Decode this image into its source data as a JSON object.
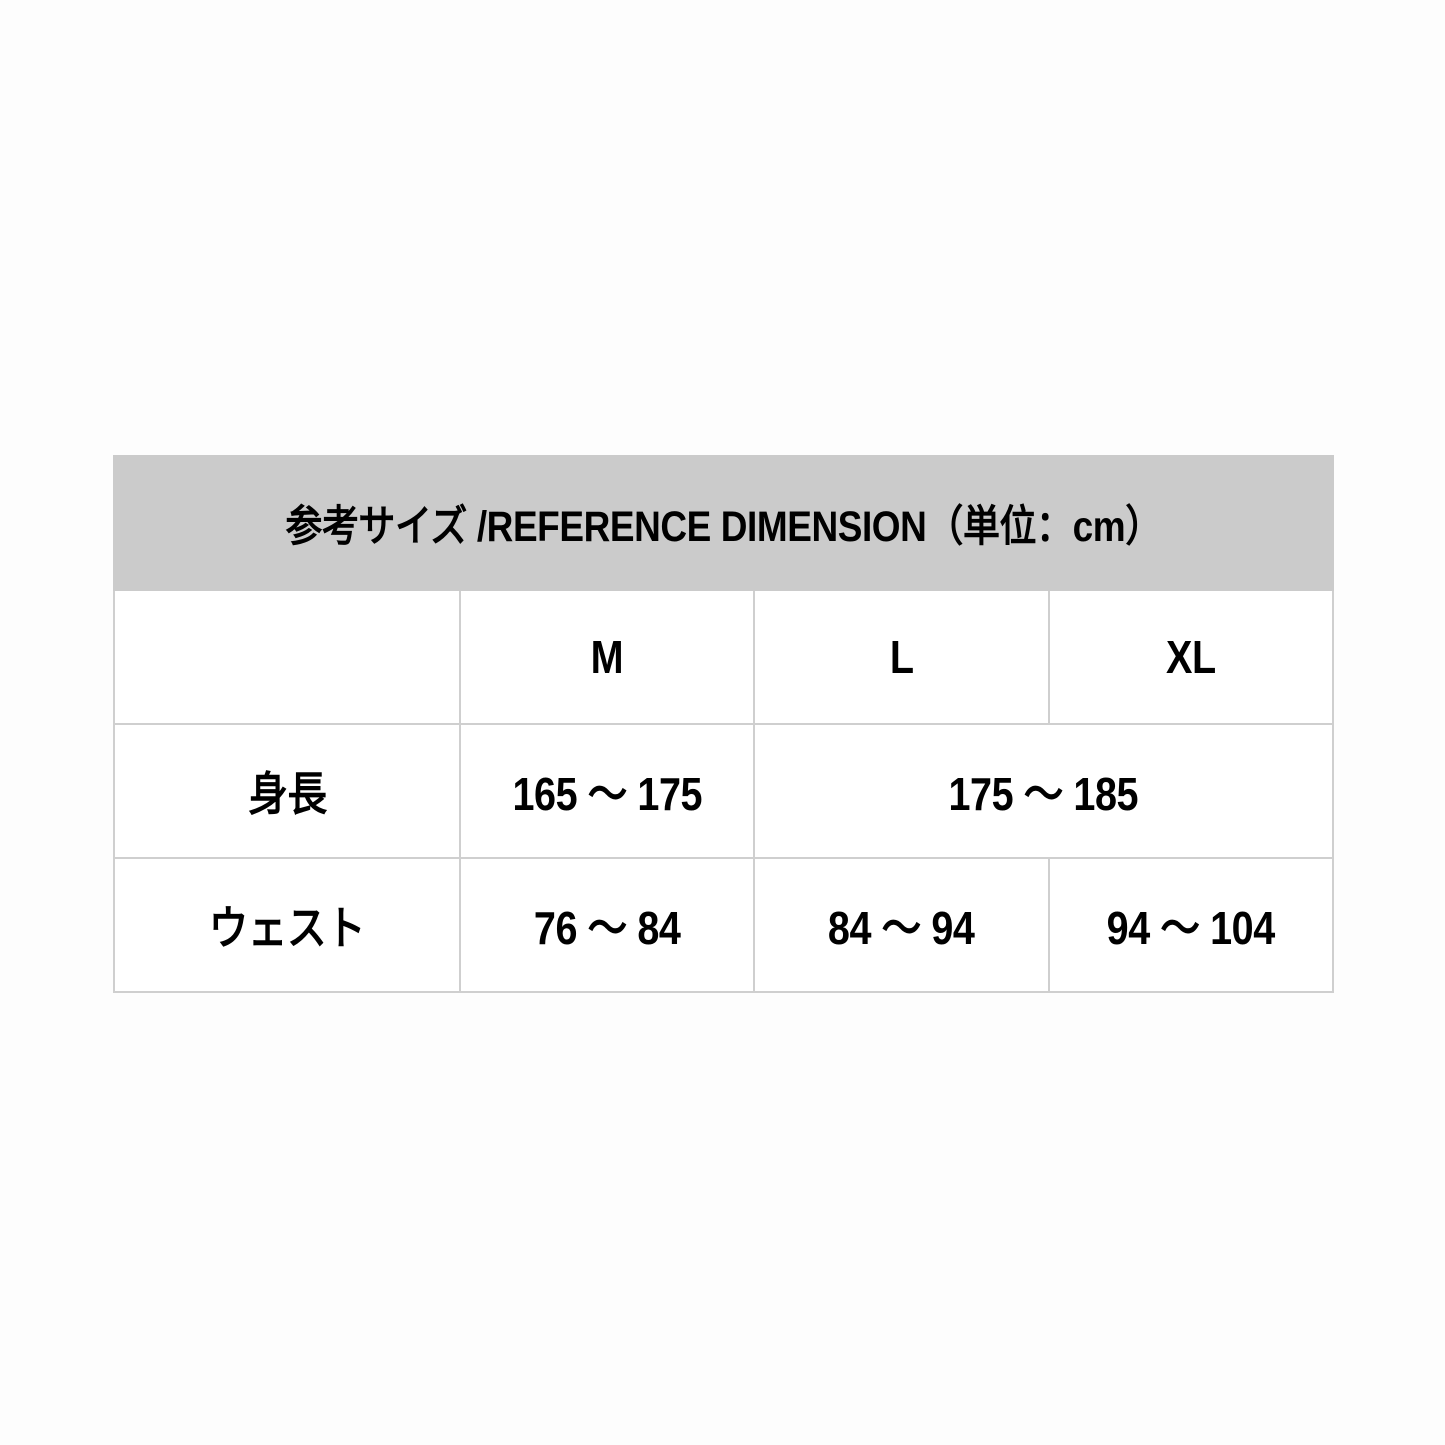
{
  "title": "参考サイズ /REFERENCE DIMENSION（単位：cm）",
  "columns": [
    "",
    "M",
    "L",
    "XL"
  ],
  "rows": [
    {
      "label": "身長",
      "cells": [
        {
          "value": "165 ～ 175"
        },
        {
          "value": "175 ～ 185",
          "span": "L–XL"
        }
      ]
    },
    {
      "label": "ウェスト",
      "cells": [
        {
          "value": "76 ～ 84"
        },
        {
          "value": "84 ～ 94"
        },
        {
          "value": "94 ～ 104"
        }
      ]
    }
  ],
  "colors": {
    "header_bg": "#cbcbcb",
    "border": "#cfcfcf",
    "text": "#000000"
  }
}
